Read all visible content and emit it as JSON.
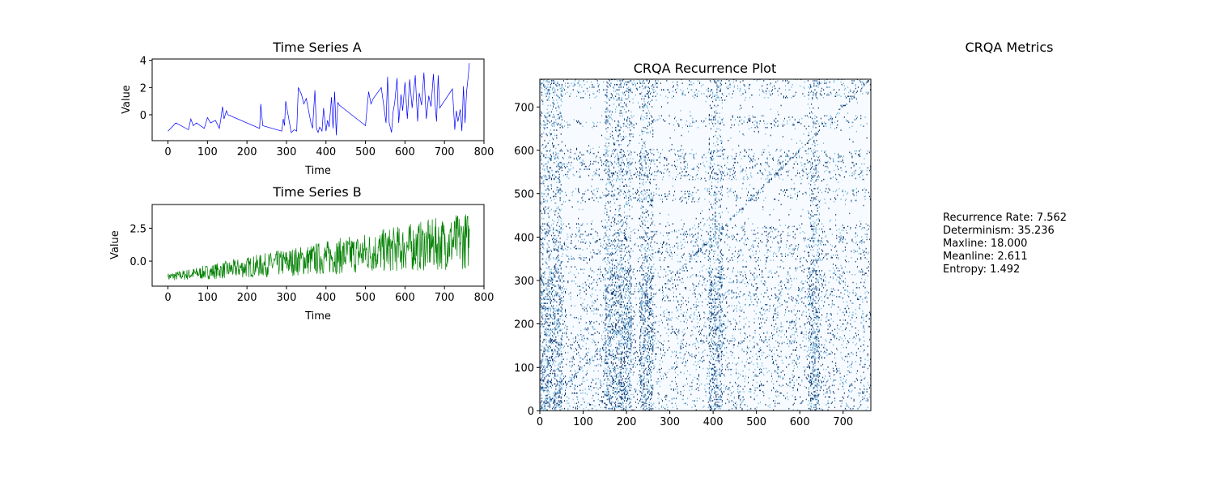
{
  "colors": {
    "series_a": "#0000ff",
    "series_b": "#008000",
    "recurrence_low": "#f7fbff",
    "recurrence_high": "#08306b"
  },
  "chart_data": [
    {
      "id": "series_a",
      "type": "line",
      "title": "Time Series A",
      "xlabel": "Time",
      "ylabel": "Value",
      "xlim": [
        -40,
        800
      ],
      "ylim": [
        -1.9,
        4.1
      ],
      "xticks": [
        0,
        100,
        200,
        300,
        400,
        500,
        600,
        700,
        800
      ],
      "yticks": [
        0,
        2,
        4
      ],
      "series": [
        {
          "color": "#0000ff",
          "x": [
            0,
            20,
            52,
            58,
            64,
            72,
            92,
            100,
            108,
            120,
            130,
            134,
            138,
            142,
            148,
            152,
            232,
            235,
            240,
            288,
            292,
            295,
            298,
            312,
            320,
            326,
            330,
            338,
            344,
            350,
            362,
            366,
            372,
            376,
            380,
            384,
            390,
            394,
            400,
            404,
            408,
            414,
            418,
            422,
            426,
            430,
            434,
            500,
            504,
            508,
            514,
            520,
            540,
            552,
            556,
            560,
            566,
            570,
            574,
            580,
            584,
            590,
            594,
            600,
            606,
            612,
            618,
            626,
            632,
            636,
            642,
            648,
            654,
            660,
            666,
            672,
            676,
            680,
            684,
            688,
            720,
            726,
            730,
            734,
            740,
            744,
            748,
            752,
            756,
            760,
            763
          ],
          "values": [
            -1.2,
            -0.6,
            -1.1,
            -0.3,
            -0.8,
            -0.6,
            -1.0,
            -0.2,
            -0.6,
            -0.4,
            -1.0,
            -0.3,
            0.6,
            -0.3,
            0.3,
            0.0,
            -1.0,
            0.8,
            -0.8,
            -1.2,
            -0.3,
            -0.8,
            1.0,
            -1.3,
            -1.1,
            -1.2,
            2.0,
            1.5,
            0.8,
            1.2,
            -0.6,
            -1.0,
            1.8,
            -1.0,
            -1.3,
            -0.9,
            -1.2,
            0.5,
            -1.2,
            -0.4,
            -0.9,
            1.3,
            -1.0,
            1.7,
            -1.5,
            0.9,
            0.7,
            -0.8,
            0.5,
            1.7,
            0.8,
            1.2,
            2.0,
            -0.6,
            2.8,
            -0.6,
            -1.3,
            0.2,
            0.9,
            2.7,
            -0.6,
            1.5,
            0.3,
            2.4,
            -0.3,
            2.6,
            0.5,
            2.9,
            -0.5,
            1.6,
            0.7,
            3.1,
            -0.3,
            1.4,
            0.6,
            3.0,
            0.8,
            -0.5,
            2.9,
            0.5,
            1.9,
            -1.1,
            0.3,
            -0.5,
            0.4,
            -1.2,
            2.1,
            -0.6,
            1.7,
            2.8,
            3.8
          ]
        }
      ]
    },
    {
      "id": "series_b",
      "type": "line",
      "title": "Time Series B",
      "xlabel": "Time",
      "ylabel": "Value",
      "xlim": [
        -40,
        800
      ],
      "ylim": [
        -1.9,
        4.3
      ],
      "xticks": [
        0,
        100,
        200,
        300,
        400,
        500,
        600,
        700,
        800
      ],
      "yticks": [
        0.0,
        2.5
      ],
      "yticklabels": [
        "0.0",
        "2.5"
      ],
      "n_points": 764,
      "series": [
        {
          "color": "#008000",
          "start": -1.2,
          "trend_end": 1.6,
          "noise_start": 0.3,
          "noise_end": 2.2,
          "max": 3.8,
          "min": -1.7
        }
      ]
    },
    {
      "id": "recurrence",
      "type": "heatmap",
      "title": "CRQA Recurrence Plot",
      "xlim": [
        0,
        764
      ],
      "ylim": [
        0,
        764
      ],
      "xticks": [
        0,
        100,
        200,
        300,
        400,
        500,
        600,
        700
      ],
      "yticks": [
        0,
        100,
        200,
        300,
        400,
        500,
        600,
        700
      ],
      "colormap": "Blues",
      "dense_row_bands": [
        [
          0,
          330
        ],
        [
          340,
          430
        ],
        [
          480,
          510
        ],
        [
          530,
          600
        ],
        [
          650,
          680
        ],
        [
          720,
          764
        ]
      ],
      "dense_col_bands": [
        [
          0,
          50
        ],
        [
          150,
          210
        ],
        [
          230,
          260
        ],
        [
          390,
          420
        ],
        [
          620,
          645
        ]
      ]
    }
  ],
  "metrics": {
    "title": "CRQA Metrics",
    "lines": [
      "Recurrence Rate: 7.562",
      "Determinism: 35.236",
      "Maxline: 18.000",
      "Meanline: 2.611",
      "Entropy: 1.492"
    ]
  }
}
